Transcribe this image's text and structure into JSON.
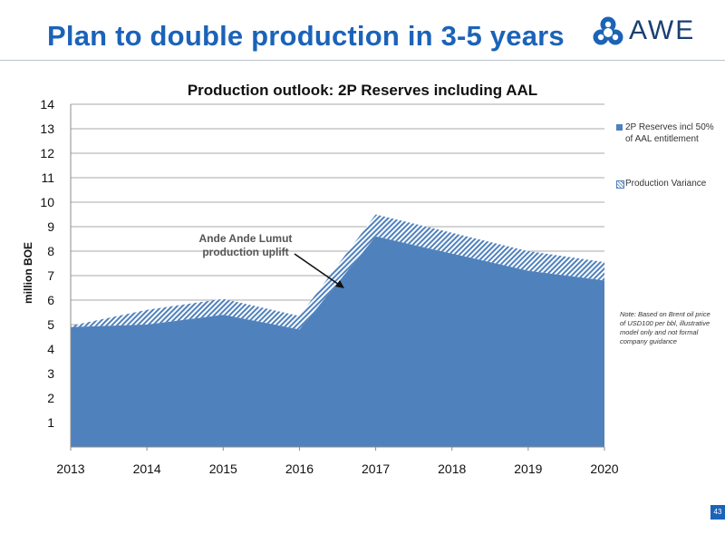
{
  "slide": {
    "title": "Plan to double production in 3-5 years",
    "logo_text": "AWE",
    "page_number": "43"
  },
  "colors": {
    "title_blue": "#1b63b8",
    "series_fill": "#4f81bd",
    "logo_navy": "#1b3f73"
  },
  "chart_data": {
    "type": "area",
    "title": "Production outlook: 2P Reserves including AAL",
    "ylabel": "million BOE",
    "xlabel": "",
    "x": [
      "2013",
      "2014",
      "2015",
      "2016",
      "2017",
      "2018",
      "2019",
      "2020"
    ],
    "ylim": [
      0,
      14
    ],
    "yticks": [
      1,
      2,
      3,
      4,
      5,
      6,
      7,
      8,
      9,
      10,
      11,
      12,
      13,
      14
    ],
    "grid": true,
    "stacked": true,
    "legend_position": "right",
    "series": [
      {
        "name": "2P Reserves incl 50% of AAL entitlement",
        "style": "solid",
        "color": "#4f81bd",
        "values": [
          4.9,
          5.0,
          5.4,
          4.8,
          8.6,
          7.9,
          7.2,
          6.8
        ]
      },
      {
        "name": "Production Variance",
        "style": "hatched",
        "color": "#4f81bd",
        "values": [
          0.05,
          0.6,
          0.65,
          0.55,
          0.9,
          0.85,
          0.8,
          0.75
        ]
      }
    ],
    "annotations": [
      {
        "text": "Ande Ande Lumut production uplift",
        "points_to_x": 2016.6,
        "points_to_y": 6.5
      }
    ],
    "note": "Note: Based on Brent oil price of USD100 per bbl, illustrative model only and not formal company guidance"
  }
}
